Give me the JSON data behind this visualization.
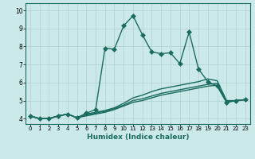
{
  "title": "",
  "xlabel": "Humidex (Indice chaleur)",
  "ylabel": "",
  "bg_color": "#cce9e9",
  "grid_color": "#b0d0d0",
  "line_color": "#1a6b60",
  "xlim": [
    -0.5,
    23.5
  ],
  "ylim": [
    3.7,
    10.4
  ],
  "yticks": [
    4,
    5,
    6,
    7,
    8,
    9,
    10
  ],
  "xticks": [
    0,
    1,
    2,
    3,
    4,
    5,
    6,
    7,
    8,
    9,
    10,
    11,
    12,
    13,
    14,
    15,
    16,
    17,
    18,
    19,
    20,
    21,
    22,
    23
  ],
  "series": [
    {
      "x": [
        0,
        1,
        2,
        3,
        4,
        5,
        6,
        7,
        8,
        9,
        10,
        11,
        12,
        13,
        14,
        15,
        16,
        17,
        18,
        19,
        20,
        21,
        22,
        23
      ],
      "y": [
        4.15,
        4.0,
        4.0,
        4.15,
        4.25,
        4.05,
        4.3,
        4.5,
        7.9,
        7.85,
        9.15,
        9.7,
        8.65,
        7.7,
        7.6,
        7.65,
        7.05,
        8.8,
        6.75,
        6.05,
        5.8,
        4.9,
        5.0,
        5.05
      ],
      "marker": "D",
      "ms": 3.0,
      "lw": 1.0
    },
    {
      "x": [
        0,
        1,
        2,
        3,
        4,
        5,
        6,
        7,
        8,
        9,
        10,
        11,
        12,
        13,
        14,
        15,
        16,
        17,
        18,
        19,
        20,
        21,
        22,
        23
      ],
      "y": [
        4.15,
        4.0,
        4.0,
        4.15,
        4.25,
        4.05,
        4.25,
        4.35,
        4.45,
        4.6,
        4.85,
        5.15,
        5.3,
        5.5,
        5.65,
        5.75,
        5.85,
        5.95,
        6.05,
        6.2,
        6.1,
        5.0,
        5.0,
        5.05
      ],
      "marker": null,
      "ms": 0,
      "lw": 1.0
    },
    {
      "x": [
        0,
        1,
        2,
        3,
        4,
        5,
        6,
        7,
        8,
        9,
        10,
        11,
        12,
        13,
        14,
        15,
        16,
        17,
        18,
        19,
        20,
        21,
        22,
        23
      ],
      "y": [
        4.15,
        4.0,
        4.0,
        4.15,
        4.25,
        4.05,
        4.2,
        4.3,
        4.4,
        4.55,
        4.75,
        5.0,
        5.1,
        5.25,
        5.4,
        5.5,
        5.6,
        5.7,
        5.8,
        5.9,
        5.95,
        4.95,
        5.0,
        5.05
      ],
      "marker": null,
      "ms": 0,
      "lw": 1.0
    },
    {
      "x": [
        0,
        1,
        2,
        3,
        4,
        5,
        6,
        7,
        8,
        9,
        10,
        11,
        12,
        13,
        14,
        15,
        16,
        17,
        18,
        19,
        20,
        21,
        22,
        23
      ],
      "y": [
        4.15,
        4.0,
        4.0,
        4.15,
        4.25,
        4.05,
        4.15,
        4.25,
        4.35,
        4.5,
        4.7,
        4.9,
        5.0,
        5.15,
        5.3,
        5.4,
        5.5,
        5.6,
        5.7,
        5.8,
        5.85,
        4.9,
        5.0,
        5.05
      ],
      "marker": null,
      "ms": 0,
      "lw": 1.0
    }
  ]
}
